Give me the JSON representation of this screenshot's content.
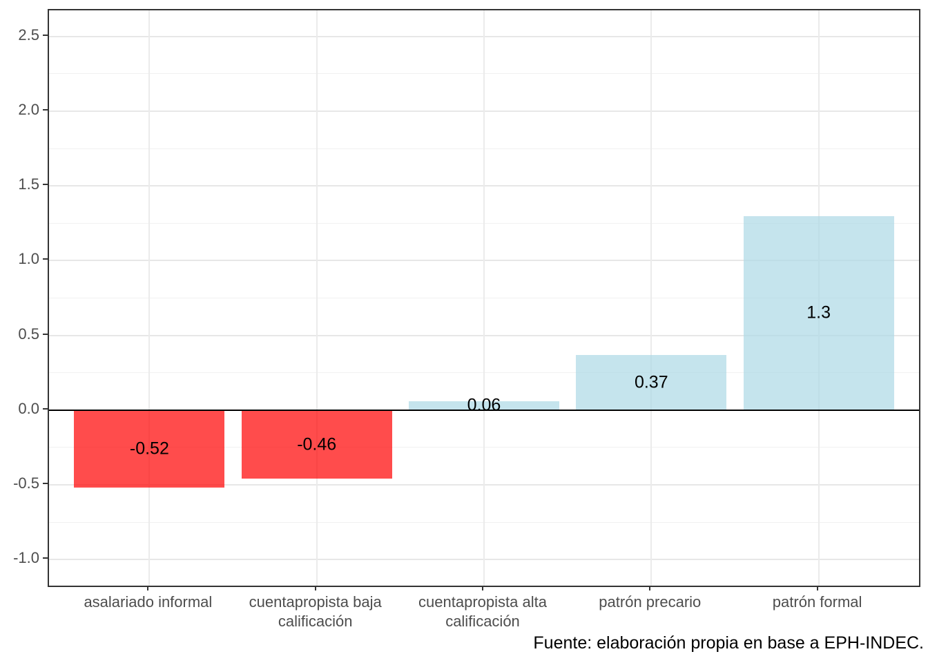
{
  "chart_data": {
    "type": "bar",
    "title": "",
    "xlabel": "",
    "ylabel": "",
    "categories": [
      "asalariado informal",
      "cuentapropista baja calificación",
      "cuentapropista alta calificación",
      "patrón precario",
      "patrón formal"
    ],
    "values": [
      -0.52,
      -0.46,
      0.06,
      0.37,
      1.3
    ],
    "bar_labels": [
      "-0.52",
      "-0.46",
      "0.06",
      "0.37",
      "1.3"
    ],
    "colors": {
      "negative_fill": "rgba(255,0,0,0.7)",
      "positive_fill": "rgba(173,216,230,0.7)",
      "negative_on_white": "#FF4D4D",
      "positive_on_white": "#C5E3EE",
      "axis_text": "#4D4D4D",
      "panel_border": "#333333",
      "zero_line": "#000000"
    },
    "ylim": [
      -1.175,
      2.675
    ],
    "y_major_ticks": [
      -1.0,
      -0.5,
      0.0,
      0.5,
      1.0,
      1.5,
      2.0,
      2.5
    ],
    "y_tick_labels": [
      "-1.0",
      "-0.5",
      "0.0",
      "0.5",
      "1.0",
      "1.5",
      "2.0",
      "2.5"
    ],
    "y_minor_ticks": [
      -0.75,
      -0.25,
      0.25,
      0.75,
      1.25,
      1.75,
      2.25
    ],
    "grid": "horizontal major+minor, vertical major at category centers",
    "legend_position": "none",
    "zero_reference_line": true,
    "caption": "Fuente: elaboración propia en base a EPH-INDEC."
  }
}
